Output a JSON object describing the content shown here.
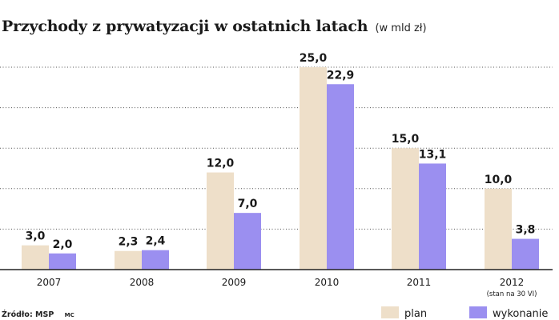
{
  "chart_data": {
    "type": "bar",
    "title": "Przychody z prywatyzacji w ostatnich latach",
    "subtitle": "(w mld zł)",
    "categories": [
      "2007",
      "2008",
      "2009",
      "2010",
      "2011",
      "2012"
    ],
    "category_notes": [
      "",
      "",
      "",
      "",
      "",
      "(stan na 30 VI)"
    ],
    "series": [
      {
        "name": "plan",
        "values": [
          3.0,
          2.3,
          12.0,
          25.0,
          15.0,
          10.0
        ],
        "labels": [
          "3,0",
          "2,3",
          "12,0",
          "25,0",
          "15,0",
          "10,0"
        ],
        "color": "#eedfc9"
      },
      {
        "name": "wykonanie",
        "values": [
          2.0,
          2.4,
          7.0,
          22.9,
          13.1,
          3.8
        ],
        "labels": [
          "2,0",
          "2,4",
          "7,0",
          "22,9",
          "13,1",
          "3,8"
        ],
        "color": "#9b8ff0"
      }
    ],
    "ylim": [
      0,
      25
    ],
    "grid": true,
    "legend": "bottom-right"
  },
  "footer": {
    "source": "Źródło: MSP",
    "credit": "MC"
  }
}
